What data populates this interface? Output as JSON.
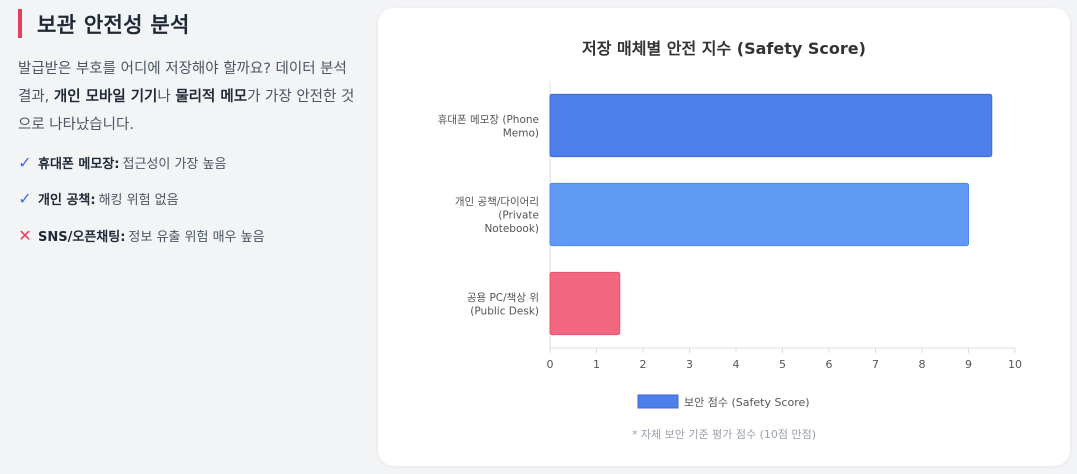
{
  "left": {
    "title": "보관 안전성 분석",
    "desc_part1": "발급받은 부호를 어디에 저장해야 할까요? 데이터 분석 결과, ",
    "desc_bold1": "개인 모바일 기기",
    "desc_part2": "나 ",
    "desc_bold2": "물리적 메모",
    "desc_part3": "가 가장 안전한 것으로 나타났습니다.",
    "items": [
      {
        "icon": "check-icon",
        "mark": "✓",
        "label": "휴대폰 메모장:",
        "text": "접근성이 가장 높음",
        "color": "#3b6fe0"
      },
      {
        "icon": "check-icon",
        "mark": "✓",
        "label": "개인 공책:",
        "text": "해킹 위험 없음",
        "color": "#3b6fe0"
      },
      {
        "icon": "cross-icon",
        "mark": "✕",
        "label": "SNS/오픈채팅:",
        "text": "정보 유출 위험 매우 높음",
        "color": "#e63e5c"
      }
    ]
  },
  "chart_data": {
    "type": "bar",
    "orientation": "horizontal",
    "title": "저장 매체별 안전 지수 (Safety Score)",
    "categories": [
      [
        "휴대폰 메모장 (Phone",
        "Memo)"
      ],
      [
        "개인 공책/다이어리",
        "(Private",
        "Notebook)"
      ],
      [
        "공용 PC/책상 위",
        "(Public Desk)"
      ]
    ],
    "series": [
      {
        "name": "보안 점수 (Safety Score)",
        "values": [
          9.5,
          9.0,
          1.5
        ]
      }
    ],
    "bar_colors": [
      "#4f7fe8",
      "#5f9af5",
      "#f3667f"
    ],
    "bar_edge_colors": [
      "#3b6ad8",
      "#4a88ec",
      "#e45570"
    ],
    "legend_color": "#4f7fe8",
    "xlim": [
      0,
      10
    ],
    "xticks": [
      "0",
      "1",
      "2",
      "3",
      "4",
      "5",
      "6",
      "7",
      "8",
      "9",
      "10"
    ],
    "grid": false,
    "legend_position": "bottom",
    "note": "* 자체 보안 기준 평가 점수 (10점 만점)"
  }
}
